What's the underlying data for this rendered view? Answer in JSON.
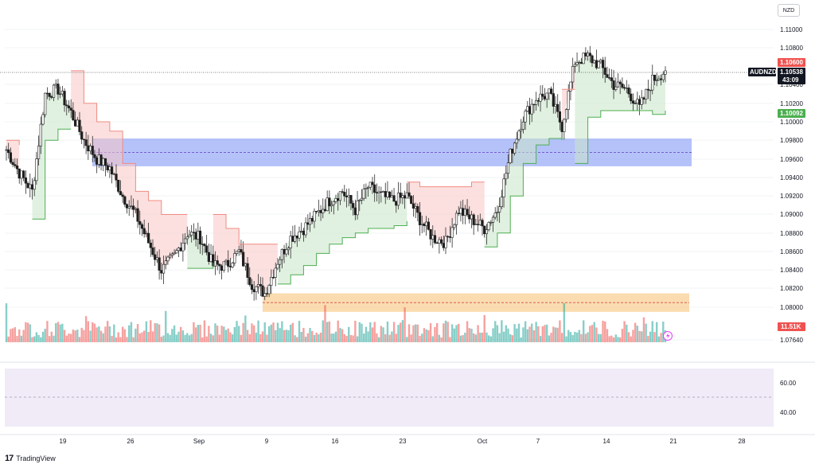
{
  "currency": "NZD",
  "footer": {
    "brand": "TradingView"
  },
  "colors": {
    "up": "#26a69a",
    "down": "#ef5350",
    "trail_up": "#4caf50",
    "trail_down": "#f28b82",
    "zone_blue": "#7b93f5",
    "zone_orange": "#f7c680",
    "rsi_bg": "#ede7f6"
  },
  "chart_data": {
    "type": "candlestick",
    "symbol": "AUDNZD",
    "y_axis": {
      "ticks": [
        "1.11000",
        "1.10800",
        "1.10400",
        "1.10200",
        "1.10000",
        "1.09800",
        "1.09600",
        "1.09400",
        "1.09200",
        "1.09000",
        "1.08800",
        "1.08600",
        "1.08400",
        "1.08200",
        "1.08000",
        "1.07640"
      ],
      "tick_values": [
        1.11,
        1.108,
        1.104,
        1.102,
        1.1,
        1.098,
        1.096,
        1.094,
        1.092,
        1.09,
        1.088,
        1.086,
        1.084,
        1.082,
        1.08,
        1.0764
      ],
      "range": [
        1.0764,
        1.112
      ]
    },
    "x_axis": {
      "ticks": [
        "19",
        "26",
        "Sep",
        "9",
        "16",
        "23",
        "Oct",
        "7",
        "14",
        "21",
        "28"
      ]
    },
    "price_tags": {
      "upper": "1.10600",
      "current_symbol": "AUDNZD",
      "current": "1.10538",
      "countdown": "43:09",
      "lower": "1.10092",
      "volume": "11.51K"
    },
    "anchor_prices": [
      1.097,
      1.0945,
      1.0925,
      1.103,
      1.1035,
      1.101,
      1.098,
      1.096,
      1.095,
      1.092,
      1.09,
      1.087,
      1.084,
      1.0855,
      1.088,
      1.0875,
      1.0845,
      1.0845,
      1.086,
      1.0825,
      1.0815,
      1.085,
      1.0875,
      1.0885,
      1.09,
      1.0915,
      1.0925,
      1.0905,
      1.093,
      1.092,
      1.0915,
      1.092,
      1.0895,
      1.0875,
      1.087,
      1.0905,
      1.0895,
      1.0885,
      1.0905,
      1.0965,
      1.1005,
      1.1025,
      1.103,
      1.0995,
      1.1065,
      1.107,
      1.106,
      1.104,
      1.1035,
      1.1015,
      1.1045,
      1.1055
    ],
    "trail": [
      {
        "dir": "down",
        "pts": [
          [
            0,
            1.098
          ],
          [
            1,
            1.0975
          ]
        ]
      },
      {
        "dir": "up",
        "pts": [
          [
            2,
            1.0895
          ],
          [
            3,
            1.098
          ],
          [
            4,
            1.0992
          ],
          [
            5,
            1.0992
          ]
        ]
      },
      {
        "dir": "down",
        "pts": [
          [
            5,
            1.1055
          ],
          [
            6,
            1.102
          ],
          [
            7,
            1.1
          ],
          [
            8,
            1.099
          ],
          [
            9,
            1.0955
          ],
          [
            10,
            1.0925
          ],
          [
            11,
            1.0915
          ],
          [
            12,
            1.09
          ],
          [
            13,
            1.09
          ],
          [
            14,
            1.09
          ]
        ]
      },
      {
        "dir": "up",
        "pts": [
          [
            14,
            1.0842
          ],
          [
            15,
            1.0842
          ],
          [
            16,
            1.0848
          ]
        ]
      },
      {
        "dir": "down",
        "pts": [
          [
            16,
            1.09
          ],
          [
            17,
            1.0885
          ],
          [
            18,
            1.0868
          ],
          [
            19,
            1.0868
          ],
          [
            20,
            1.0868
          ],
          [
            21,
            1.0868
          ]
        ]
      },
      {
        "dir": "up",
        "pts": [
          [
            21,
            1.0825
          ],
          [
            22,
            1.0835
          ],
          [
            23,
            1.0845
          ],
          [
            24,
            1.0858
          ],
          [
            25,
            1.0868
          ],
          [
            26,
            1.0875
          ],
          [
            27,
            1.088
          ],
          [
            28,
            1.0885
          ],
          [
            29,
            1.0885
          ],
          [
            30,
            1.0888
          ],
          [
            31,
            1.0893
          ]
        ]
      },
      {
        "dir": "down",
        "pts": [
          [
            31,
            1.0935
          ],
          [
            32,
            1.093
          ],
          [
            33,
            1.093
          ],
          [
            34,
            1.093
          ],
          [
            35,
            1.093
          ],
          [
            36,
            1.0935
          ],
          [
            37,
            1.0935
          ]
        ]
      },
      {
        "dir": "up",
        "pts": [
          [
            37,
            1.0865
          ],
          [
            38,
            1.088
          ],
          [
            39,
            1.092
          ],
          [
            40,
            1.0955
          ],
          [
            41,
            1.0975
          ],
          [
            42,
            1.0982
          ],
          [
            43,
            1.098
          ]
        ]
      },
      {
        "dir": "down",
        "pts": [
          [
            43,
            1.1035
          ],
          [
            44,
            1.1035
          ]
        ]
      },
      {
        "dir": "up",
        "pts": [
          [
            44,
            1.0955
          ],
          [
            45,
            1.1005
          ],
          [
            46,
            1.1012
          ],
          [
            47,
            1.1012
          ],
          [
            48,
            1.1012
          ],
          [
            49,
            1.1012
          ],
          [
            50,
            1.1008
          ],
          [
            51,
            1.1012
          ]
        ]
      }
    ],
    "zones": [
      {
        "name": "resistance-zone",
        "color": "blue",
        "from": 1.0952,
        "to": 1.0982
      },
      {
        "name": "support-zone",
        "color": "orange",
        "from": 1.0795,
        "to": 1.0815
      }
    ],
    "rsi_panel": {
      "ticks": [
        "60.00",
        "40.00"
      ]
    }
  }
}
